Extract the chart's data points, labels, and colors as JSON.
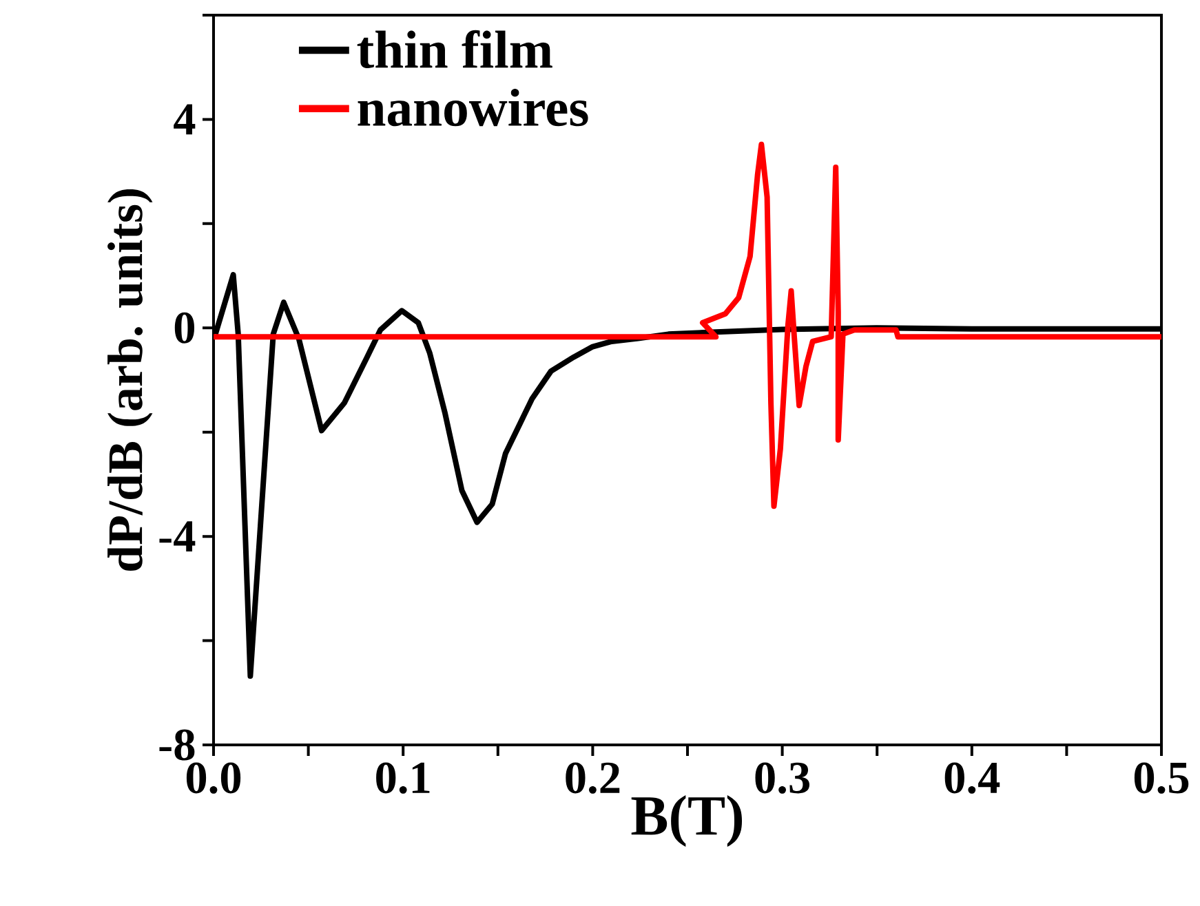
{
  "chart_data": {
    "type": "line",
    "xlabel": "B(T)",
    "ylabel": "dP/dB (arb. units)",
    "xlim": [
      0,
      0.5
    ],
    "ylim": [
      -8,
      6
    ],
    "xticks": [
      {
        "value": 0,
        "label": "0.0"
      },
      {
        "value": 0.05,
        "label": null
      },
      {
        "value": 0.1,
        "label": "0.1"
      },
      {
        "value": 0.15,
        "label": null
      },
      {
        "value": 0.2,
        "label": "0.2"
      },
      {
        "value": 0.25,
        "label": null
      },
      {
        "value": 0.3,
        "label": "0.3"
      },
      {
        "value": 0.35,
        "label": null
      },
      {
        "value": 0.4,
        "label": "0.4"
      },
      {
        "value": 0.45,
        "label": null
      },
      {
        "value": 0.5,
        "label": "0.5"
      }
    ],
    "yticks": [
      -8,
      {
        "value": -6,
        "label": null
      },
      -4,
      {
        "value": -2,
        "label": null
      },
      0,
      {
        "value": 2,
        "label": null
      },
      4,
      {
        "value": 6,
        "label": null
      }
    ],
    "legend": "top left",
    "series": [
      {
        "name": "thin film",
        "color": "#000000",
        "x": [
          0.001,
          0.0104,
          0.013,
          0.0194,
          0.0315,
          0.037,
          0.045,
          0.057,
          0.069,
          0.081,
          0.088,
          0.0993,
          0.108,
          0.114,
          0.122,
          0.131,
          0.139,
          0.147,
          0.154,
          0.168,
          0.178,
          0.19,
          0.2,
          0.21,
          0.224,
          0.24,
          0.265,
          0.3,
          0.35,
          0.4,
          0.45,
          0.5
        ],
        "values": [
          -0.12,
          1.02,
          -0.12,
          -6.68,
          -0.12,
          0.49,
          -0.21,
          -1.97,
          -1.44,
          -0.56,
          -0.04,
          0.33,
          0.1,
          -0.48,
          -1.62,
          -3.12,
          -3.73,
          -3.38,
          -2.41,
          -1.36,
          -0.83,
          -0.56,
          -0.36,
          -0.26,
          -0.2,
          -0.12,
          -0.08,
          -0.03,
          0.0,
          -0.02,
          -0.02,
          -0.02
        ]
      },
      {
        "name": "nanowires",
        "color": "#ff0000",
        "x": [
          0,
          0.265,
          0.258,
          0.27,
          0.277,
          0.283,
          0.287,
          0.289,
          0.292,
          0.294,
          0.2956,
          0.299,
          0.303,
          0.3047,
          0.3064,
          0.3089,
          0.3125,
          0.316,
          0.3258,
          0.3282,
          0.3295,
          0.3295,
          0.332,
          0.338,
          0.36,
          0.361,
          0.5
        ],
        "values": [
          -0.17,
          -0.17,
          0.1,
          0.27,
          0.58,
          1.37,
          2.95,
          3.52,
          2.51,
          -1.44,
          -3.42,
          -2.32,
          0.05,
          0.71,
          -0.21,
          -1.49,
          -0.74,
          -0.26,
          -0.17,
          3.08,
          0.31,
          -2.15,
          -0.12,
          -0.04,
          -0.04,
          -0.17,
          -0.17
        ]
      }
    ]
  }
}
